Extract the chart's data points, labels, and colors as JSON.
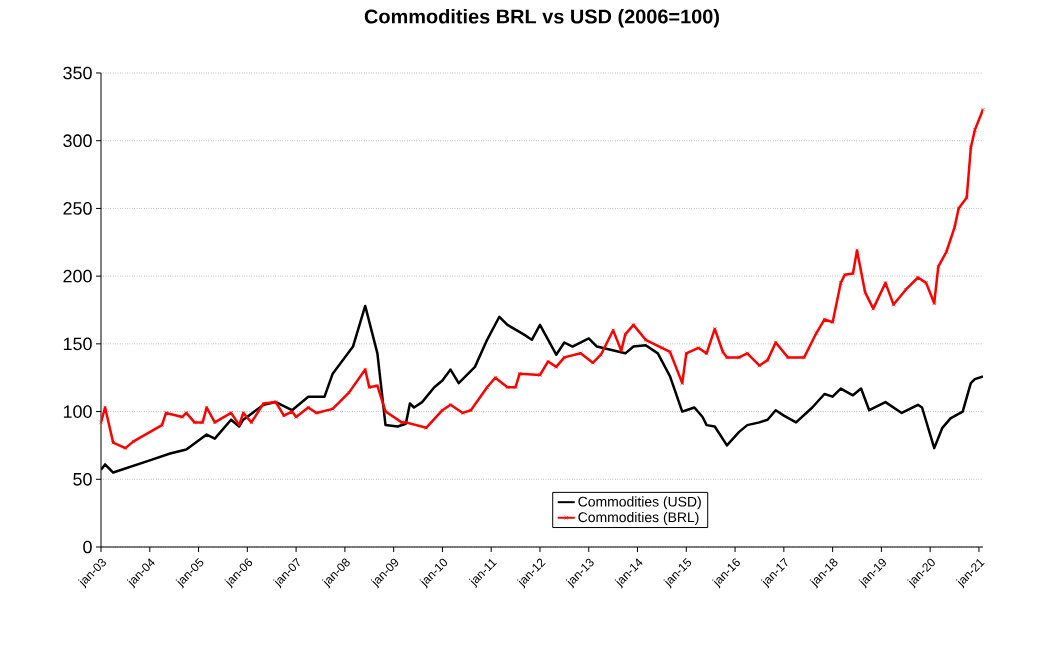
{
  "chart_data": {
    "type": "line",
    "title": "Commodities BRL vs USD (2006=100)",
    "xlim": [
      "2003-01",
      "2021-02"
    ],
    "ylim": [
      0,
      350
    ],
    "yticks": [
      0,
      50,
      100,
      150,
      200,
      250,
      300,
      350
    ],
    "xticks": [
      {
        "value": "2003-01",
        "label": "jan-03"
      },
      {
        "value": "2004-01",
        "label": "jan-04"
      },
      {
        "value": "2005-01",
        "label": "jan-05"
      },
      {
        "value": "2006-01",
        "label": "jan-06"
      },
      {
        "value": "2007-01",
        "label": "jan-07"
      },
      {
        "value": "2008-01",
        "label": "jan-08"
      },
      {
        "value": "2009-01",
        "label": "jan-09"
      },
      {
        "value": "2010-01",
        "label": "jan-10"
      },
      {
        "value": "2011-01",
        "label": "jan-11"
      },
      {
        "value": "2012-01",
        "label": "jan-12"
      },
      {
        "value": "2013-01",
        "label": "jan-13"
      },
      {
        "value": "2014-01",
        "label": "jan-14"
      },
      {
        "value": "2015-01",
        "label": "jan-15"
      },
      {
        "value": "2016-01",
        "label": "jan-16"
      },
      {
        "value": "2017-01",
        "label": "jan-17"
      },
      {
        "value": "2018-01",
        "label": "jan-18"
      },
      {
        "value": "2019-01",
        "label": "jan-19"
      },
      {
        "value": "2020-01",
        "label": "jan-20"
      },
      {
        "value": "2021-01",
        "label": "jan-21"
      }
    ],
    "grid": "y",
    "legend": "bottom",
    "series": [
      {
        "name": "Commodities (USD)",
        "color": "#000000",
        "marker": "none",
        "x": [
          "2003-01",
          "2003-02",
          "2003-04",
          "2004-01",
          "2004-06",
          "2004-10",
          "2005-03",
          "2005-05",
          "2005-09",
          "2005-11",
          "2005-12",
          "2006-05",
          "2006-08",
          "2006-12",
          "2007-04",
          "2007-08",
          "2007-10",
          "2008-03",
          "2008-06",
          "2008-09",
          "2008-11",
          "2009-02",
          "2009-04",
          "2009-05",
          "2009-06",
          "2009-08",
          "2009-11",
          "2010-01",
          "2010-03",
          "2010-05",
          "2010-09",
          "2010-12",
          "2011-03",
          "2011-05",
          "2011-09",
          "2011-11",
          "2012-01",
          "2012-05",
          "2012-07",
          "2012-09",
          "2013-01",
          "2013-03",
          "2013-10",
          "2013-12",
          "2014-03",
          "2014-06",
          "2014-09",
          "2014-12",
          "2015-01",
          "2015-03",
          "2015-05",
          "2015-06",
          "2015-08",
          "2015-11",
          "2016-02",
          "2016-04",
          "2016-07",
          "2016-09",
          "2016-11",
          "2017-01",
          "2017-04",
          "2017-08",
          "2017-11",
          "2018-01",
          "2018-03",
          "2018-06",
          "2018-08",
          "2018-10",
          "2019-02",
          "2019-06",
          "2019-10",
          "2019-11",
          "2020-02",
          "2020-04",
          "2020-06",
          "2020-09",
          "2020-11",
          "2020-12",
          "2021-02"
        ],
        "values": [
          57,
          61,
          55,
          64,
          69,
          72,
          83,
          80,
          94,
          89,
          94,
          105,
          107,
          101,
          111,
          111,
          128,
          148,
          178,
          143,
          90,
          89,
          91,
          106,
          103,
          107,
          118,
          123,
          131,
          121,
          133,
          153,
          170,
          164,
          157,
          153,
          164,
          142,
          151,
          148,
          154,
          148,
          143,
          148,
          149,
          143,
          126,
          100,
          101,
          103,
          96,
          90,
          89,
          75,
          85,
          90,
          92,
          94,
          101,
          97,
          92,
          103,
          113,
          111,
          117,
          112,
          117,
          101,
          107,
          99,
          105,
          103,
          73,
          88,
          95,
          100,
          121,
          124,
          126
        ]
      },
      {
        "name": "Commodities (BRL)",
        "color": "#ff0000",
        "marker": "cross",
        "x": [
          "2003-01",
          "2003-02",
          "2003-04",
          "2003-07",
          "2003-09",
          "2004-04",
          "2004-05",
          "2004-09",
          "2004-10",
          "2004-12",
          "2005-02",
          "2005-03",
          "2005-05",
          "2005-09",
          "2005-11",
          "2005-12",
          "2006-02",
          "2006-05",
          "2006-08",
          "2006-10",
          "2006-12",
          "2007-01",
          "2007-04",
          "2007-06",
          "2007-10",
          "2008-02",
          "2008-06",
          "2008-07",
          "2008-09",
          "2008-11",
          "2009-03",
          "2009-04",
          "2009-09",
          "2010-01",
          "2010-03",
          "2010-06",
          "2010-08",
          "2010-12",
          "2011-02",
          "2011-05",
          "2011-07",
          "2011-08",
          "2012-01",
          "2012-03",
          "2012-05",
          "2012-07",
          "2012-11",
          "2013-02",
          "2013-04",
          "2013-07",
          "2013-09",
          "2013-10",
          "2013-12",
          "2014-03",
          "2014-07",
          "2014-09",
          "2014-12",
          "2015-01",
          "2015-04",
          "2015-06",
          "2015-08",
          "2015-10",
          "2015-11",
          "2016-02",
          "2016-04",
          "2016-07",
          "2016-09",
          "2016-11",
          "2017-02",
          "2017-06",
          "2017-09",
          "2017-11",
          "2018-01",
          "2018-03",
          "2018-04",
          "2018-06",
          "2018-07",
          "2018-09",
          "2018-11",
          "2019-02",
          "2019-04",
          "2019-07",
          "2019-10",
          "2019-12",
          "2020-02",
          "2020-03",
          "2020-05",
          "2020-07",
          "2020-08",
          "2020-10",
          "2020-11",
          "2020-12",
          "2021-02"
        ],
        "values": [
          92,
          103,
          77,
          73,
          78,
          90,
          99,
          96,
          99,
          92,
          92,
          103,
          92,
          99,
          90,
          99,
          92,
          106,
          107,
          97,
          100,
          96,
          103,
          99,
          102,
          114,
          131,
          118,
          119,
          100,
          92,
          92,
          88,
          101,
          105,
          99,
          101,
          118,
          125,
          118,
          118,
          128,
          127,
          137,
          133,
          140,
          143,
          136,
          142,
          160,
          145,
          157,
          164,
          153,
          147,
          144,
          121,
          143,
          147,
          143,
          161,
          144,
          140,
          140,
          143,
          134,
          138,
          151,
          140,
          140,
          158,
          168,
          166,
          195,
          201,
          202,
          219,
          188,
          176,
          195,
          179,
          190,
          199,
          195,
          180,
          207,
          218,
          236,
          250,
          258,
          295,
          308,
          323
        ]
      }
    ]
  }
}
